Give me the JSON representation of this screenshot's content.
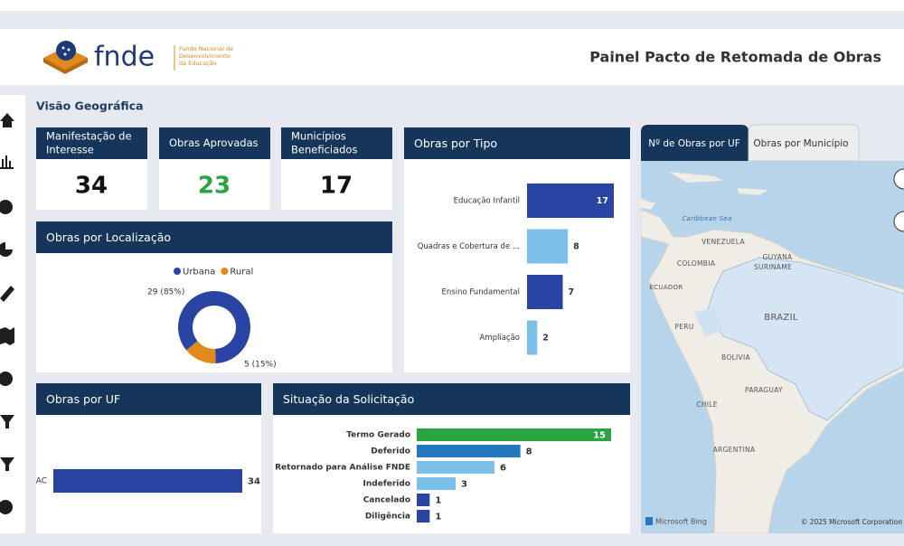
{
  "header": {
    "logo": "fnde",
    "logo_caption": [
      "Fundo Nacional de",
      "Desenvolvimento",
      "da Educação"
    ],
    "title": "Painel Pacto de Retomada de Obras"
  },
  "section_title": "Visão Geográfica",
  "kpis": [
    {
      "label": [
        "Manifestação de",
        "Interesse"
      ],
      "value": 34,
      "color": "#111111"
    },
    {
      "label": [
        "Obras Aprovadas"
      ],
      "value": 23,
      "color": "#2aa340"
    },
    {
      "label": [
        "Municípios",
        "Beneficiados"
      ],
      "value": 17,
      "color": "#111111"
    }
  ],
  "localizacao": {
    "type": "pie",
    "title": "Obras por Localização",
    "categories": [
      "Urbana",
      "Rural"
    ],
    "values": [
      29,
      5
    ],
    "value_labels": [
      "29 (85%)",
      "5 (15%)"
    ],
    "colors": [
      "#2a44a3",
      "#e08a1e"
    ]
  },
  "tipo": {
    "type": "bar",
    "title": "Obras por Tipo",
    "categories": [
      "Educação Infantil",
      "Quadras e Cobertura de ...",
      "Ensino Fundamental",
      "Ampliação"
    ],
    "values": [
      17,
      8,
      7,
      2
    ],
    "colors": [
      "#2a44a3",
      "#7cbfe8",
      "#2a44a3",
      "#7cbfe8"
    ]
  },
  "uf": {
    "type": "bar",
    "title": "Obras por UF",
    "categories": [
      "AC"
    ],
    "values": [
      34
    ],
    "colors": [
      "#2a44a3"
    ]
  },
  "situacao": {
    "type": "bar",
    "title": "Situação da Solicitação",
    "categories": [
      "Termo Gerado",
      "Deferido",
      "Retornado para Análise FNDE",
      "Indeferido",
      "Cancelado",
      "Diligência"
    ],
    "values": [
      15,
      8,
      6,
      3,
      1,
      1
    ],
    "colors": [
      "#2aa340",
      "#2478c0",
      "#7cbfe8",
      "#7cbfe8",
      "#2a44a3",
      "#2a44a3"
    ]
  },
  "map": {
    "tabs": [
      "Nº de Obras por UF",
      "Obras por Município"
    ],
    "labels": [
      "Caribbean Sea",
      "VENEZUELA",
      "COLOMBIA",
      "GUYANA",
      "SURINAME",
      "ECUADOR",
      "PERU",
      "BRAZIL",
      "BOLIVIA",
      "PARAGUAY",
      "CHILE",
      "ARGENTINA"
    ],
    "attribution": "Microsoft Bing",
    "copyright": "© 2025 Microsoft Corporation"
  }
}
